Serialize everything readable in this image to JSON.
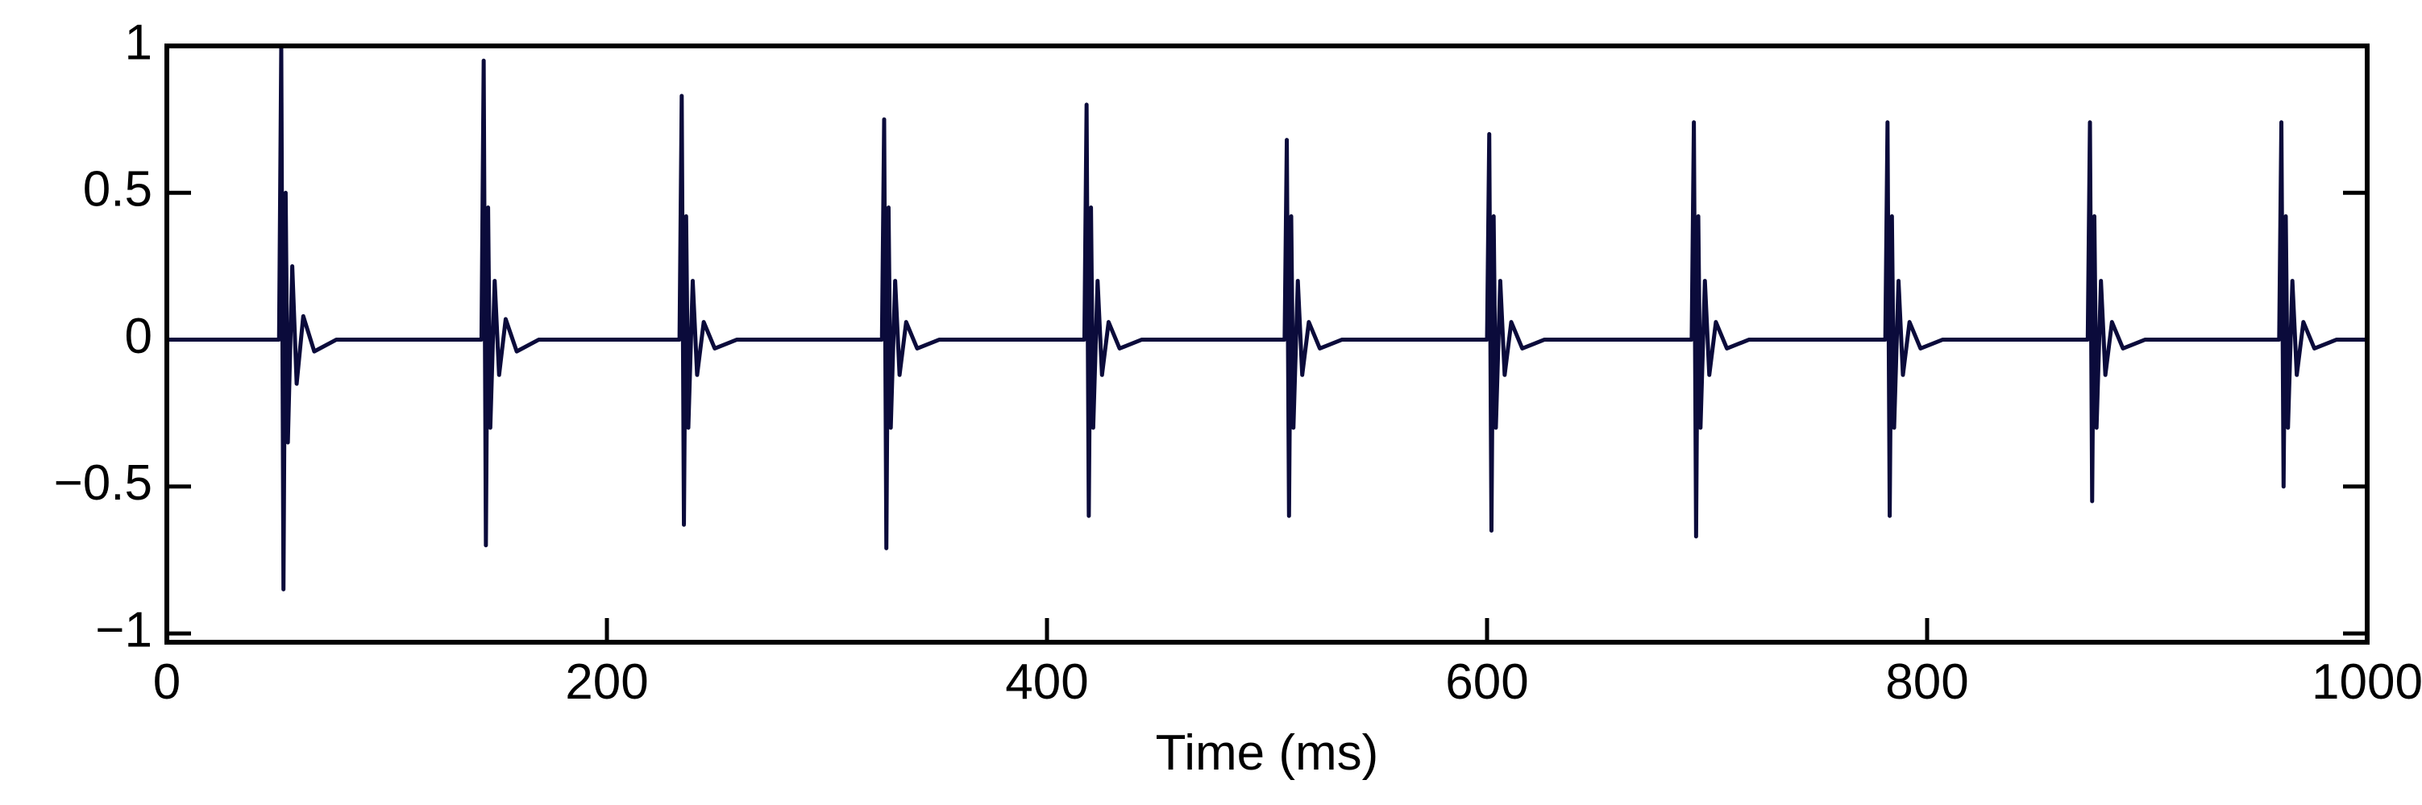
{
  "chart_data": {
    "type": "line",
    "xlabel": "Time (ms)",
    "xlim": [
      0,
      1000
    ],
    "xticks": [
      0,
      200,
      400,
      600,
      800,
      1000
    ],
    "ylim": [
      -1.03,
      1
    ],
    "yticks": [
      {
        "value": -1,
        "label": "−1"
      },
      {
        "value": -0.5,
        "label": "−0.5"
      },
      0,
      0.5,
      1
    ],
    "series": [
      {
        "color": "#0b0b3b",
        "x": [
          0,
          51,
          52,
          53,
          54,
          55,
          57,
          59,
          62,
          67,
          77,
          143,
          144,
          145,
          146,
          147,
          149,
          151,
          154,
          159,
          169,
          233,
          234,
          235,
          236,
          237,
          239,
          241,
          244,
          249,
          259,
          325,
          326,
          327,
          328,
          329,
          331,
          333,
          336,
          341,
          351,
          417,
          418,
          419,
          420,
          421,
          423,
          425,
          428,
          433,
          443,
          508,
          509,
          510,
          511,
          512,
          514,
          516,
          519,
          524,
          534,
          600,
          601,
          602,
          603,
          604,
          606,
          608,
          611,
          616,
          626,
          693,
          694,
          695,
          696,
          697,
          699,
          701,
          704,
          709,
          719,
          781,
          782,
          783,
          784,
          785,
          787,
          789,
          792,
          797,
          807,
          873,
          874,
          875,
          876,
          877,
          879,
          881,
          884,
          889,
          899,
          960,
          961,
          962,
          963,
          964,
          966,
          968,
          971,
          976,
          986,
          1000
        ],
        "values": [
          0,
          0,
          1,
          -0.85,
          0.5,
          -0.35,
          0.25,
          -0.15,
          0.08,
          -0.04,
          0,
          0,
          0.95,
          -0.7,
          0.45,
          -0.3,
          0.2,
          -0.12,
          0.07,
          -0.04,
          0,
          0,
          0.83,
          -0.63,
          0.42,
          -0.3,
          0.2,
          -0.12,
          0.06,
          -0.03,
          0,
          0,
          0.75,
          -0.71,
          0.45,
          -0.3,
          0.2,
          -0.12,
          0.06,
          -0.03,
          0,
          0,
          0.8,
          -0.6,
          0.45,
          -0.3,
          0.2,
          -0.12,
          0.06,
          -0.03,
          0,
          0,
          0.68,
          -0.6,
          0.42,
          -0.3,
          0.2,
          -0.12,
          0.06,
          -0.03,
          0,
          0,
          0.7,
          -0.65,
          0.42,
          -0.3,
          0.2,
          -0.12,
          0.06,
          -0.03,
          0,
          0,
          0.74,
          -0.67,
          0.42,
          -0.3,
          0.2,
          -0.12,
          0.06,
          -0.03,
          0,
          0,
          0.74,
          -0.6,
          0.42,
          -0.3,
          0.2,
          -0.12,
          0.06,
          -0.03,
          0,
          0,
          0.74,
          -0.55,
          0.42,
          -0.3,
          0.2,
          -0.12,
          0.06,
          -0.03,
          0,
          0,
          0.74,
          -0.5,
          0.42,
          -0.3,
          0.2,
          -0.12,
          0.06,
          -0.03,
          0,
          0
        ]
      }
    ]
  }
}
